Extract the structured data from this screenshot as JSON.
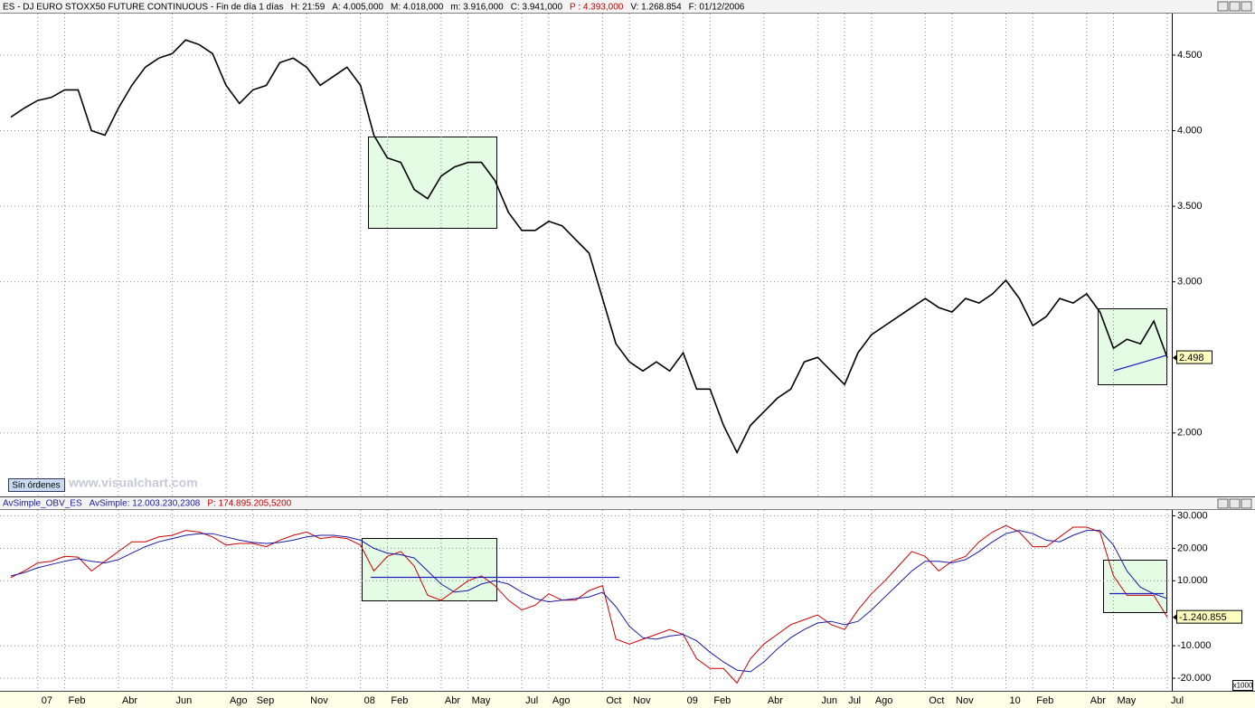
{
  "chart_data": [
    {
      "type": "line",
      "title": "ES - DJ EURO STOXX50 FUTURE CONTINUOUS - Fin de día 1 días",
      "info": [
        "H: 21:59",
        "A: 4.005,000",
        "M: 4.018,000",
        "m: 3.916,000",
        "C: 3.941,000",
        "P : 4.393,000",
        "V: 1.268.854",
        "F: 01/12/2006"
      ],
      "categories": [
        null,
        null,
        "07",
        null,
        "Feb",
        null,
        null,
        null,
        "Abr",
        null,
        null,
        null,
        "Jun",
        null,
        null,
        null,
        "Ago",
        null,
        "Sep",
        null,
        null,
        null,
        "Nov",
        null,
        null,
        null,
        "08",
        null,
        "Feb",
        null,
        null,
        null,
        "Abr",
        null,
        "May",
        null,
        null,
        null,
        "Jul",
        null,
        "Ago",
        null,
        null,
        null,
        "Oct",
        null,
        "Nov",
        null,
        null,
        null,
        "09",
        null,
        "Feb",
        null,
        null,
        null,
        "Abr",
        null,
        null,
        null,
        "Jun",
        null,
        "Jul",
        null,
        "Ago",
        null,
        null,
        null,
        "Oct",
        null,
        "Nov",
        null,
        null,
        null,
        "10",
        null,
        "Feb",
        null,
        null,
        null,
        "Abr",
        null,
        "May",
        null,
        null,
        null,
        "Jul"
      ],
      "series": [
        {
          "color": "#000000",
          "values": [
            4090,
            4150,
            4200,
            4220,
            4270,
            4270,
            4000,
            3970,
            4150,
            4300,
            4420,
            4480,
            4510,
            4600,
            4570,
            4510,
            4300,
            4180,
            4270,
            4300,
            4450,
            4480,
            4420,
            4300,
            4360,
            4420,
            4300,
            3970,
            3820,
            3790,
            3610,
            3550,
            3700,
            3760,
            3790,
            3790,
            3670,
            3460,
            3340,
            3340,
            3400,
            3370,
            3280,
            3190,
            2890,
            2590,
            2470,
            2410,
            2470,
            2410,
            2530,
            2290,
            2290,
            2050,
            1870,
            2050,
            2140,
            2230,
            2290,
            2470,
            2500,
            2410,
            2320,
            2530,
            2650,
            2710,
            2770,
            2830,
            2890,
            2830,
            2800,
            2890,
            2860,
            2920,
            3010,
            2890,
            2710,
            2770,
            2890,
            2860,
            2920,
            2800,
            2560,
            2620,
            2590,
            2740,
            2498
          ],
          "value_labels": [
            null,
            null,
            null,
            null,
            null,
            null,
            null,
            null,
            null,
            null,
            null,
            null,
            null,
            null,
            null,
            null,
            null,
            null,
            null,
            null,
            null,
            null,
            null,
            null,
            null,
            null,
            null,
            null,
            null,
            null,
            null,
            null,
            null,
            null,
            null,
            null,
            null,
            null,
            null,
            null,
            null,
            null,
            null,
            null,
            null,
            null,
            null,
            null,
            null,
            null,
            null,
            null,
            null,
            null,
            null,
            null,
            null,
            null,
            null,
            null,
            null,
            null,
            null,
            null,
            null,
            null,
            null,
            null,
            null,
            null,
            null,
            null,
            null,
            null,
            null,
            null,
            null,
            null,
            null,
            null,
            null,
            null,
            null,
            null,
            null,
            null,
            "2.498"
          ]
        }
      ],
      "ylim": [
        1580,
        4775
      ],
      "yticks": [
        {
          "value": 4500,
          "label": "4.500"
        },
        {
          "value": 4000,
          "label": "4.000"
        },
        {
          "value": 3500,
          "label": "3.500"
        },
        {
          "value": 3000,
          "label": "3.000"
        },
        {
          "value": 2000,
          "label": "2.000"
        }
      ],
      "grid": true
    },
    {
      "type": "line",
      "title": "AvSimple_OBV_ES",
      "info": [
        "AvSimple: 12.003.230,2308",
        "P: 174.895.205,5200"
      ],
      "unit": "x1000",
      "series": [
        {
          "color": "#cc0000",
          "values": [
            11000,
            13000,
            15500,
            16000,
            17500,
            17300,
            13000,
            16000,
            19000,
            22000,
            22000,
            23500,
            24000,
            25500,
            25000,
            23500,
            21000,
            21500,
            21500,
            20500,
            22500,
            24000,
            25000,
            23000,
            23500,
            23000,
            21000,
            13000,
            17500,
            19000,
            14500,
            5500,
            4000,
            7000,
            10000,
            11500,
            8500,
            4000,
            1000,
            2500,
            6000,
            4000,
            4000,
            7000,
            8500,
            -8000,
            -9500,
            -8000,
            -6500,
            -5000,
            -6500,
            -14000,
            -17000,
            -17000,
            -21500,
            -14000,
            -9500,
            -6500,
            -3500,
            -2000,
            -500,
            -3500,
            -5000,
            1000,
            6000,
            10000,
            14500,
            19000,
            17500,
            13000,
            16000,
            17500,
            22000,
            25000,
            27000,
            25000,
            20500,
            20500,
            23500,
            26500,
            26500,
            25000,
            11500,
            5500,
            5500,
            5500,
            -1240.855
          ],
          "value_labels": [
            null,
            null,
            null,
            null,
            null,
            null,
            null,
            null,
            null,
            null,
            null,
            null,
            null,
            null,
            null,
            null,
            null,
            null,
            null,
            null,
            null,
            null,
            null,
            null,
            null,
            null,
            null,
            null,
            null,
            null,
            null,
            null,
            null,
            null,
            null,
            null,
            null,
            null,
            null,
            null,
            null,
            null,
            null,
            null,
            null,
            null,
            null,
            null,
            null,
            null,
            null,
            null,
            null,
            null,
            null,
            null,
            null,
            null,
            null,
            null,
            null,
            null,
            null,
            null,
            null,
            null,
            null,
            null,
            null,
            null,
            null,
            null,
            null,
            null,
            null,
            null,
            null,
            null,
            null,
            null,
            null,
            null,
            null,
            null,
            null,
            null,
            "-1.240.855"
          ]
        },
        {
          "color": "#1a1aa6",
          "values": [
            11500,
            12500,
            14000,
            15000,
            16000,
            16800,
            16000,
            15500,
            16500,
            18500,
            20500,
            22000,
            23000,
            24000,
            24500,
            24500,
            23500,
            22500,
            21800,
            21500,
            21800,
            22500,
            23500,
            24000,
            24000,
            23500,
            22500,
            20000,
            18500,
            18000,
            17000,
            13000,
            9000,
            6500,
            7000,
            9000,
            10000,
            9000,
            6500,
            4500,
            3500,
            4000,
            4500,
            5000,
            6500,
            2000,
            -4000,
            -7500,
            -8000,
            -7000,
            -6500,
            -8500,
            -12000,
            -15000,
            -17500,
            -18000,
            -15000,
            -11000,
            -7500,
            -5000,
            -3000,
            -2500,
            -3500,
            -2500,
            1000,
            5000,
            9000,
            13000,
            16000,
            16000,
            15500,
            16500,
            19000,
            22000,
            24500,
            25500,
            24500,
            22500,
            22000,
            24000,
            25500,
            25500,
            21000,
            13000,
            8000,
            6000,
            4500
          ]
        }
      ],
      "ylim": [
        -23880,
        31790
      ],
      "yticks": [
        {
          "value": 30000,
          "label": "30.000"
        },
        {
          "value": 20000,
          "label": "20.000"
        },
        {
          "value": 10000,
          "label": "10.000"
        },
        {
          "value": -10000,
          "label": "-10.000"
        },
        {
          "value": -20000,
          "label": "-20.000"
        }
      ],
      "grid": true
    }
  ],
  "ui": {
    "orders_button": "Sin órdenes",
    "watermark": "www.visualchart.com"
  }
}
